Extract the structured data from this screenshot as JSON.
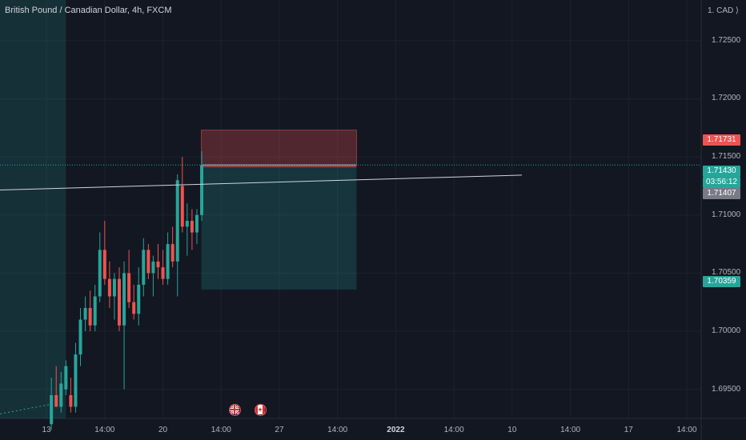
{
  "header": {
    "title": "British Pound / Canadian Dollar, 4h, FXCM",
    "currency": "1. CAD ⟩"
  },
  "colors": {
    "background": "#131722",
    "up": "#26a69a",
    "down": "#ef5350",
    "grid": "#1e222d",
    "trendline": "#d1d4dc",
    "stop_zone": "#ef5350",
    "target_zone": "#26a69a",
    "current_price": "#26a69a"
  },
  "badges": {
    "stop_price": "1.71731",
    "last_price": "1.71430",
    "countdown": "03:56:12",
    "trend_price": "1.71407",
    "target_price": "1.70359"
  },
  "events": [
    {
      "name": "uk-flag-icon",
      "x": 47
    },
    {
      "name": "canada-flag-icon",
      "x": 57
    }
  ],
  "chart_data": {
    "type": "candlestick",
    "title": "British Pound / Canadian Dollar, 4h, FXCM",
    "ylim": [
      1.6925,
      1.7285
    ],
    "y_ticks": [
      1.695,
      1.7,
      1.705,
      1.71,
      1.715,
      1.72,
      1.725
    ],
    "y_tick_labels": [
      "1.69500",
      "1.70000",
      "1.70500",
      "1.71000",
      "1.71500",
      "1.72000",
      "1.72500"
    ],
    "x_ticks": [
      {
        "label": "14:00",
        "x": 3
      },
      {
        "label": "13",
        "x": 15
      },
      {
        "label": "14:00",
        "x": 27
      },
      {
        "label": "20",
        "x": 39
      },
      {
        "label": "14:00",
        "x": 51
      },
      {
        "label": "27",
        "x": 63
      },
      {
        "label": "14:00",
        "x": 75
      },
      {
        "label": "2022",
        "x": 87,
        "bold": true
      },
      {
        "label": "14:00",
        "x": 99
      },
      {
        "label": "10",
        "x": 111
      },
      {
        "label": "14:00",
        "x": 123
      },
      {
        "label": "17",
        "x": 135
      },
      {
        "label": "14:00",
        "x": 147
      }
    ],
    "xlim": [
      0,
      152
    ],
    "grid": true,
    "candles": [
      {
        "x": 16,
        "o": 1.692,
        "h": 1.696,
        "l": 1.6915,
        "c": 1.6945
      },
      {
        "x": 17,
        "o": 1.6945,
        "h": 1.697,
        "l": 1.6935,
        "c": 1.6935
      },
      {
        "x": 18,
        "o": 1.6935,
        "h": 1.6965,
        "l": 1.693,
        "c": 1.6955
      },
      {
        "x": 19,
        "o": 1.695,
        "h": 1.6975,
        "l": 1.6945,
        "c": 1.697
      },
      {
        "x": 20,
        "o": 1.6945,
        "h": 1.696,
        "l": 1.693,
        "c": 1.6935
      },
      {
        "x": 21,
        "o": 1.6935,
        "h": 1.699,
        "l": 1.693,
        "c": 1.698
      },
      {
        "x": 22,
        "o": 1.698,
        "h": 1.702,
        "l": 1.697,
        "c": 1.701
      },
      {
        "x": 23,
        "o": 1.701,
        "h": 1.703,
        "l": 1.7,
        "c": 1.702
      },
      {
        "x": 24,
        "o": 1.702,
        "h": 1.7035,
        "l": 1.7,
        "c": 1.7005
      },
      {
        "x": 25,
        "o": 1.7005,
        "h": 1.704,
        "l": 1.7,
        "c": 1.703
      },
      {
        "x": 26,
        "o": 1.703,
        "h": 1.7085,
        "l": 1.7025,
        "c": 1.707
      },
      {
        "x": 27,
        "o": 1.707,
        "h": 1.7095,
        "l": 1.704,
        "c": 1.7045
      },
      {
        "x": 28,
        "o": 1.7045,
        "h": 1.706,
        "l": 1.702,
        "c": 1.703
      },
      {
        "x": 29,
        "o": 1.703,
        "h": 1.705,
        "l": 1.701,
        "c": 1.7045
      },
      {
        "x": 30,
        "o": 1.7045,
        "h": 1.7055,
        "l": 1.7,
        "c": 1.7005
      },
      {
        "x": 31,
        "o": 1.7005,
        "h": 1.706,
        "l": 1.695,
        "c": 1.705
      },
      {
        "x": 32,
        "o": 1.705,
        "h": 1.707,
        "l": 1.702,
        "c": 1.7025
      },
      {
        "x": 33,
        "o": 1.7025,
        "h": 1.704,
        "l": 1.701,
        "c": 1.7015
      },
      {
        "x": 34,
        "o": 1.7015,
        "h": 1.7055,
        "l": 1.7005,
        "c": 1.704
      },
      {
        "x": 35,
        "o": 1.704,
        "h": 1.708,
        "l": 1.703,
        "c": 1.707
      },
      {
        "x": 36,
        "o": 1.707,
        "h": 1.7075,
        "l": 1.7045,
        "c": 1.705
      },
      {
        "x": 37,
        "o": 1.705,
        "h": 1.7065,
        "l": 1.703,
        "c": 1.706
      },
      {
        "x": 38,
        "o": 1.706,
        "h": 1.7075,
        "l": 1.7045,
        "c": 1.7055
      },
      {
        "x": 39,
        "o": 1.7055,
        "h": 1.707,
        "l": 1.704,
        "c": 1.7045
      },
      {
        "x": 40,
        "o": 1.7045,
        "h": 1.7085,
        "l": 1.704,
        "c": 1.7075
      },
      {
        "x": 41,
        "o": 1.7075,
        "h": 1.709,
        "l": 1.7055,
        "c": 1.706
      },
      {
        "x": 42,
        "o": 1.706,
        "h": 1.7135,
        "l": 1.703,
        "c": 1.713
      },
      {
        "x": 43,
        "o": 1.7125,
        "h": 1.715,
        "l": 1.7085,
        "c": 1.709
      },
      {
        "x": 44,
        "o": 1.709,
        "h": 1.711,
        "l": 1.7065,
        "c": 1.7095
      },
      {
        "x": 45,
        "o": 1.7095,
        "h": 1.7105,
        "l": 1.707,
        "c": 1.7085
      },
      {
        "x": 46,
        "o": 1.7085,
        "h": 1.7105,
        "l": 1.7075,
        "c": 1.71
      },
      {
        "x": 47,
        "o": 1.71,
        "h": 1.7155,
        "l": 1.7095,
        "c": 1.7143
      }
    ],
    "annotations": {
      "highlight_zone_x": [
        0,
        19
      ],
      "trendline": {
        "x1": 0,
        "y1": 1.71215,
        "x2": 113,
        "y2": 1.71343
      },
      "position": {
        "x1": 47,
        "x2": 79,
        "entry": 1.7143,
        "stop": 1.71731,
        "target": 1.70359
      },
      "last_price": 1.7143,
      "trend_price": 1.71407,
      "countdown": "03:56:12"
    }
  }
}
